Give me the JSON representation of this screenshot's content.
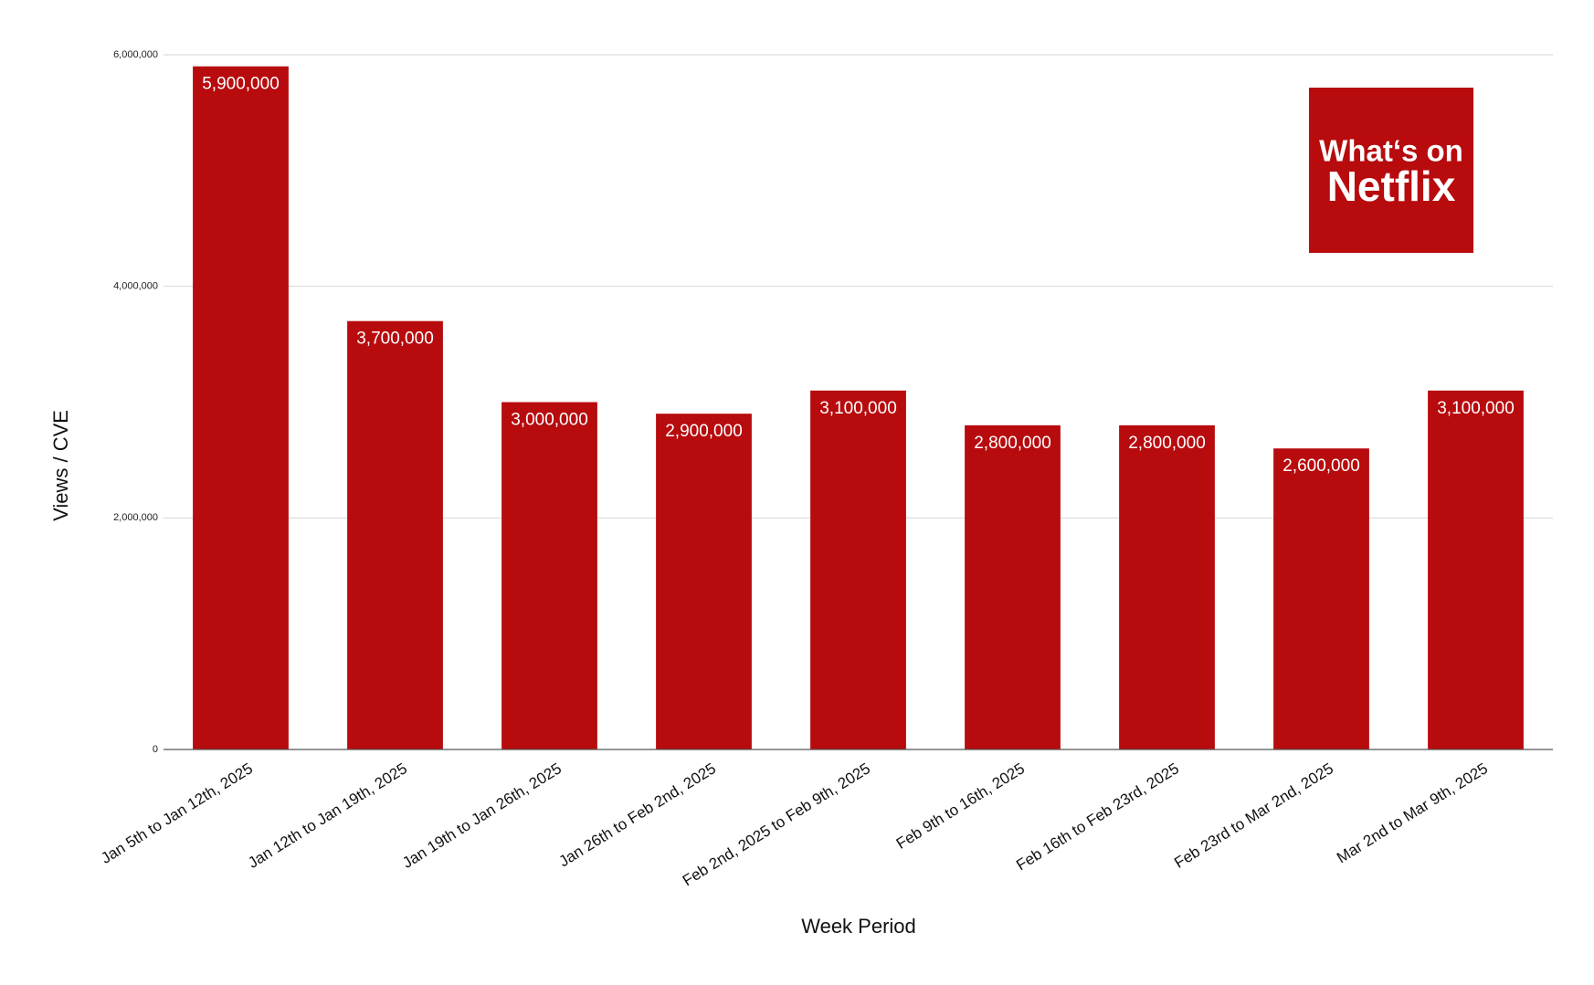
{
  "chart_data": {
    "type": "bar",
    "x_label": "Week Period",
    "y_label": "Views / CVE",
    "categories": [
      "Jan 5th to Jan 12th, 2025",
      "Jan 12th to Jan 19th, 2025",
      "Jan 19th to Jan 26th, 2025",
      "Jan 26th to Feb 2nd, 2025",
      "Feb 2nd, 2025 to Feb 9th, 2025",
      "Feb 9th to 16th, 2025",
      "Feb 16th to Feb 23rd, 2025",
      "Feb 23rd to Mar 2nd, 2025",
      "Mar 2nd to Mar 9th, 2025"
    ],
    "values": [
      5900000,
      3700000,
      3000000,
      2900000,
      3100000,
      2800000,
      2800000,
      2600000,
      3100000
    ],
    "value_labels": [
      "5,900,000",
      "3,700,000",
      "3,000,000",
      "2,900,000",
      "3,100,000",
      "2,800,000",
      "2,800,000",
      "2,600,000",
      "3,100,000"
    ],
    "color": "#b70b0e",
    "ylim": [
      0,
      6000000
    ],
    "yticks": [
      0,
      {
        "value": 2000000,
        "label": "2,000,000"
      },
      {
        "value": 4000000,
        "label": "4,000,000"
      },
      {
        "value": 6000000,
        "label": "6,000,000"
      }
    ],
    "grid": true,
    "logo": {
      "line1": "What‘s on",
      "line2": "Netflix"
    }
  }
}
